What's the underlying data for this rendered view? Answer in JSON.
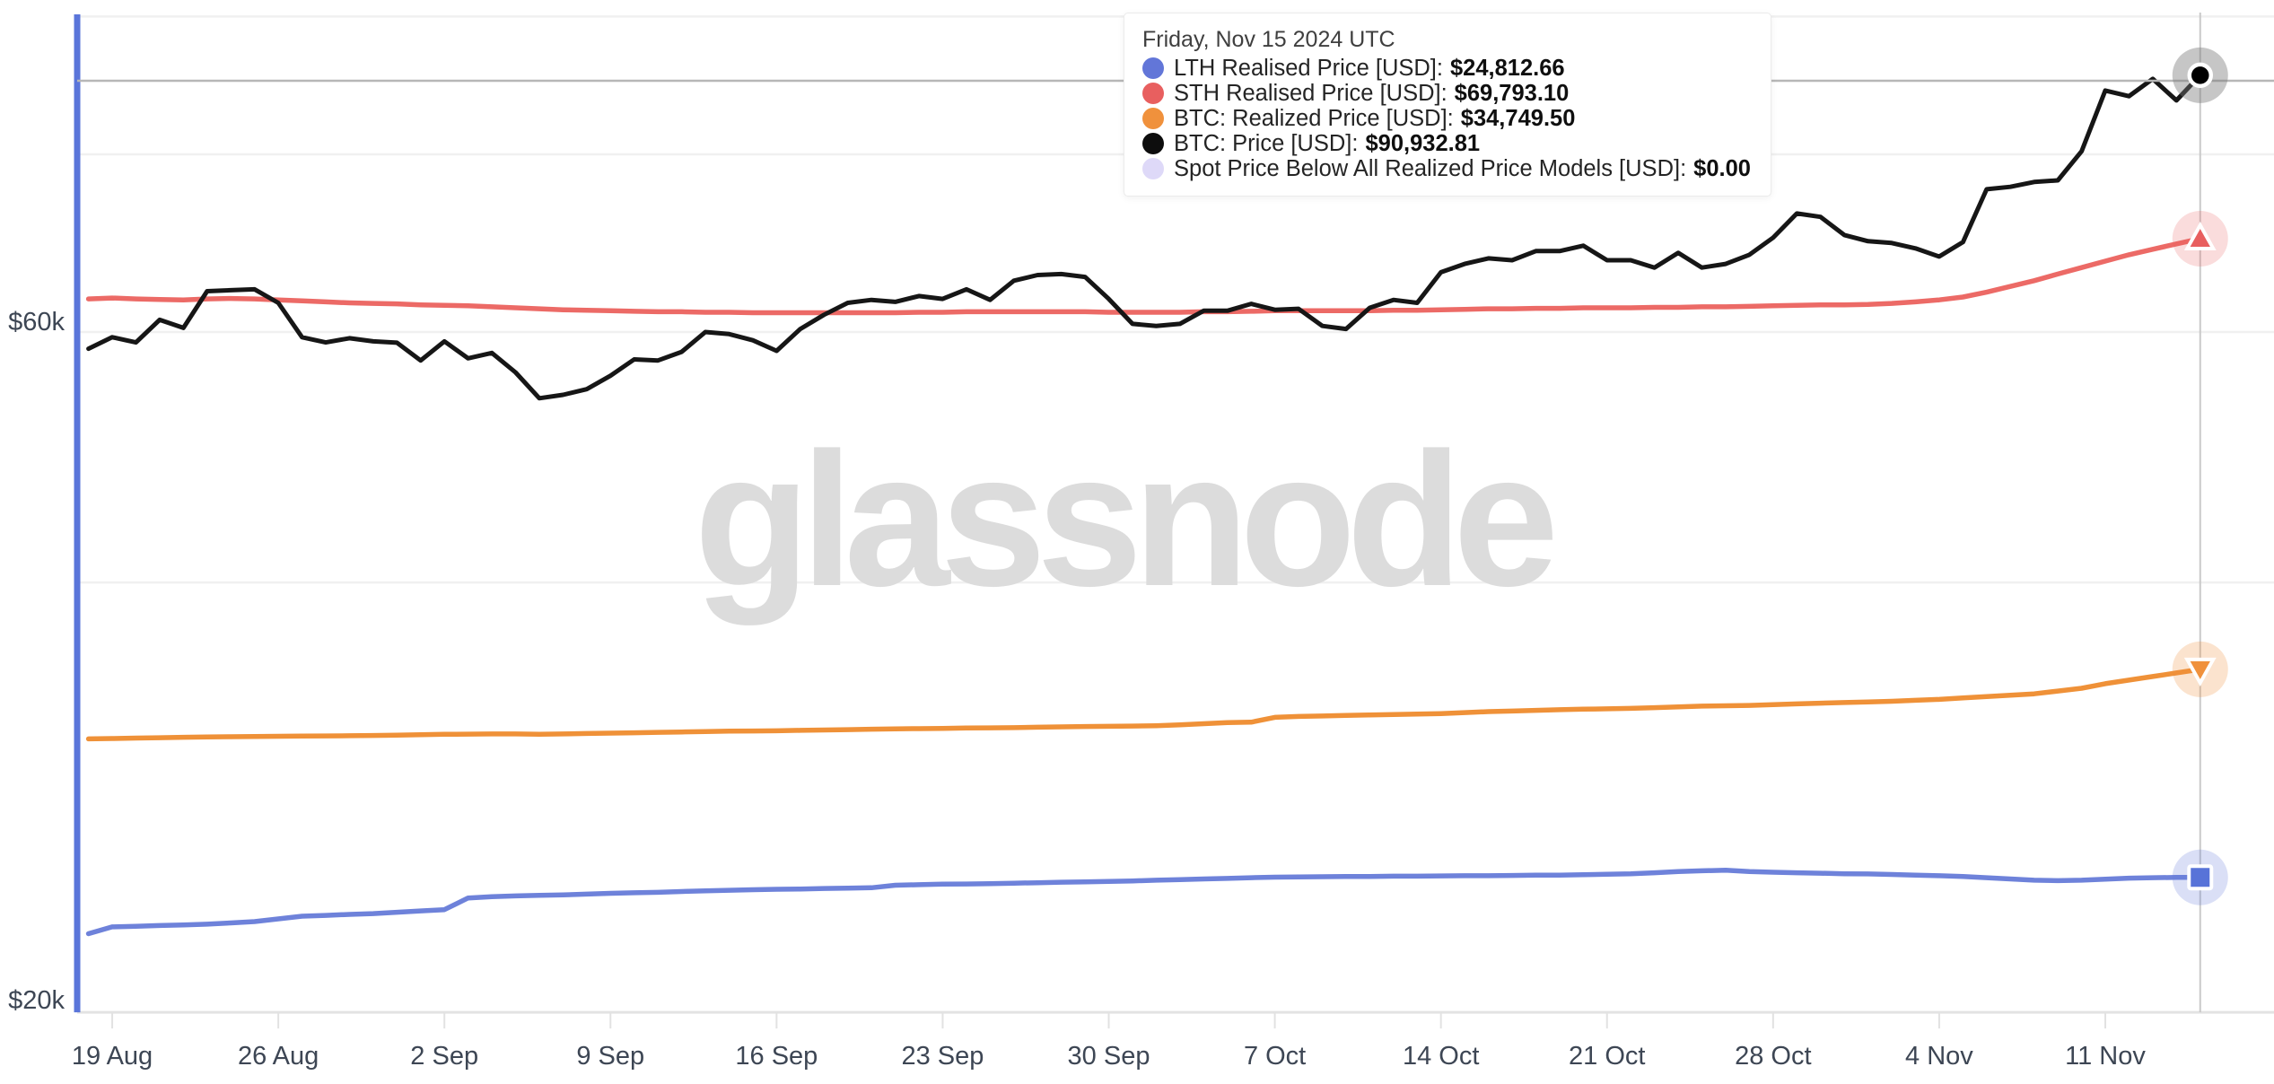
{
  "watermark": "glassnode",
  "tooltip": {
    "title": "Friday, Nov 15 2024 UTC",
    "rows": [
      {
        "label": "LTH Realised Price [USD]:",
        "value": "$24,812.66",
        "color": "#6276d8"
      },
      {
        "label": "STH Realised Price [USD]:",
        "value": "$69,793.10",
        "color": "#e85f5f"
      },
      {
        "label": "BTC: Realized Price [USD]:",
        "value": "$34,749.50",
        "color": "#f0913c"
      },
      {
        "label": "BTC: Price [USD]:",
        "value": "$90,932.81",
        "color": "#0d0d0d"
      },
      {
        "label": "Spot Price Below All Realized Price Models [USD]:",
        "value": "$0.00",
        "color": "#ded9f8"
      }
    ]
  },
  "axes": {
    "y_labels": [
      {
        "text": "$60k",
        "value_k": 60
      },
      {
        "text": "$20k",
        "value_k": 20
      }
    ],
    "x_tick_labels": [
      "19 Aug",
      "26 Aug",
      "2 Sep",
      "9 Sep",
      "16 Sep",
      "23 Sep",
      "30 Sep",
      "7 Oct",
      "14 Oct",
      "21 Oct",
      "28 Oct",
      "4 Nov",
      "11 Nov"
    ]
  },
  "chart_data": {
    "type": "line",
    "title": "",
    "x_start": "2024-08-18",
    "x_end": "2024-11-15",
    "x_freq": "daily",
    "units": "USD thousands",
    "y_scale": "log",
    "ylim_k": [
      20,
      100
    ],
    "y_gridlines_k": [
      100,
      80,
      60,
      40
    ],
    "x_axis_value_k": 20,
    "x_tick_day_offsets": [
      1,
      8,
      15,
      22,
      29,
      36,
      43,
      50,
      57,
      64,
      71,
      78,
      85
    ],
    "cursor": {
      "date": "2024-11-15",
      "day_offset": 89
    },
    "legend_position": "tooltip-top-center",
    "series": [
      {
        "name": "LTH Realised Price [USD]",
        "color": "#6e82da",
        "marker_color": "#5873d8",
        "halo": "rgba(100,120,216,0.24)",
        "marker": "square",
        "width": 5.5,
        "last_value_usd": 24812.66,
        "values_k": [
          22.65,
          22.9,
          22.92,
          22.95,
          22.97,
          23.0,
          23.05,
          23.1,
          23.2,
          23.3,
          23.33,
          23.37,
          23.4,
          23.45,
          23.5,
          23.55,
          24.0,
          24.05,
          24.08,
          24.1,
          24.12,
          24.15,
          24.18,
          24.2,
          24.22,
          24.25,
          24.28,
          24.3,
          24.32,
          24.34,
          24.35,
          24.37,
          24.38,
          24.4,
          24.5,
          24.52,
          24.54,
          24.55,
          24.56,
          24.58,
          24.6,
          24.62,
          24.63,
          24.65,
          24.67,
          24.7,
          24.72,
          24.75,
          24.77,
          24.8,
          24.82,
          24.83,
          24.84,
          24.85,
          24.85,
          24.86,
          24.86,
          24.87,
          24.88,
          24.88,
          24.89,
          24.9,
          24.9,
          24.92,
          24.94,
          24.96,
          25.0,
          25.05,
          25.08,
          25.1,
          25.05,
          25.02,
          25.0,
          24.98,
          24.96,
          24.95,
          24.93,
          24.9,
          24.88,
          24.85,
          24.8,
          24.75,
          24.7,
          24.68,
          24.7,
          24.74,
          24.78,
          24.8,
          24.81,
          24.81266
        ]
      },
      {
        "name": "BTC: Realized Price [USD]",
        "color": "#ef9138",
        "marker_color": "#f0913c",
        "halo": "rgba(240,145,60,0.25)",
        "marker": "triangle-down",
        "width": 5.5,
        "last_value_usd": 34749.5,
        "values_k": [
          31.05,
          31.07,
          31.09,
          31.11,
          31.13,
          31.15,
          31.16,
          31.17,
          31.18,
          31.19,
          31.2,
          31.21,
          31.22,
          31.24,
          31.26,
          31.28,
          31.29,
          31.3,
          31.3,
          31.28,
          31.3,
          31.32,
          31.34,
          31.36,
          31.38,
          31.4,
          31.42,
          31.44,
          31.45,
          31.46,
          31.48,
          31.5,
          31.52,
          31.54,
          31.56,
          31.57,
          31.58,
          31.6,
          31.61,
          31.62,
          31.64,
          31.66,
          31.68,
          31.69,
          31.7,
          31.72,
          31.76,
          31.82,
          31.88,
          31.9,
          32.15,
          32.2,
          32.22,
          32.25,
          32.28,
          32.3,
          32.32,
          32.35,
          32.4,
          32.45,
          32.48,
          32.52,
          32.55,
          32.58,
          32.6,
          32.62,
          32.66,
          32.7,
          32.74,
          32.76,
          32.78,
          32.82,
          32.86,
          32.9,
          32.93,
          32.96,
          33.0,
          33.05,
          33.1,
          33.18,
          33.25,
          33.32,
          33.4,
          33.55,
          33.7,
          33.95,
          34.15,
          34.35,
          34.55,
          34.7495
        ]
      },
      {
        "name": "STH Realised Price [USD]",
        "color": "#ec6a66",
        "marker_color": "#e85f5f",
        "halo": "rgba(232,95,95,0.22)",
        "marker": "triangle-up",
        "width": 5.5,
        "last_value_usd": 69793.1,
        "values_k": [
          63.3,
          63.4,
          63.3,
          63.25,
          63.2,
          63.3,
          63.35,
          63.3,
          63.2,
          63.1,
          63.0,
          62.9,
          62.85,
          62.8,
          62.7,
          62.65,
          62.6,
          62.5,
          62.4,
          62.3,
          62.2,
          62.15,
          62.1,
          62.05,
          62.0,
          62.0,
          61.95,
          61.95,
          61.9,
          61.9,
          61.9,
          61.9,
          61.9,
          61.9,
          61.9,
          61.95,
          61.95,
          62.0,
          62.0,
          62.0,
          62.0,
          62.0,
          62.0,
          61.95,
          61.95,
          61.95,
          61.95,
          62.0,
          62.0,
          62.05,
          62.1,
          62.1,
          62.1,
          62.1,
          62.1,
          62.15,
          62.15,
          62.2,
          62.25,
          62.3,
          62.3,
          62.35,
          62.35,
          62.4,
          62.4,
          62.4,
          62.45,
          62.45,
          62.5,
          62.5,
          62.55,
          62.6,
          62.65,
          62.7,
          62.7,
          62.75,
          62.85,
          63.0,
          63.2,
          63.5,
          64.0,
          64.6,
          65.2,
          65.9,
          66.6,
          67.3,
          68.0,
          68.6,
          69.2,
          69.7931
        ]
      },
      {
        "name": "BTC: Price [USD]",
        "color": "#161616",
        "marker_color": "#000000",
        "halo": "rgba(120,120,120,0.42)",
        "marker": "circle",
        "width": 5,
        "last_value_usd": 90932.81,
        "values_k": [
          58.4,
          59.5,
          59.0,
          61.2,
          60.4,
          64.1,
          64.2,
          64.3,
          62.9,
          59.5,
          59.0,
          59.4,
          59.1,
          58.97,
          57.3,
          59.1,
          57.5,
          58.0,
          56.2,
          53.9,
          54.2,
          54.7,
          55.9,
          57.4,
          57.3,
          58.1,
          60.0,
          59.8,
          59.2,
          58.2,
          60.3,
          61.7,
          62.9,
          63.2,
          63.0,
          63.6,
          63.3,
          64.3,
          63.2,
          65.2,
          65.8,
          65.9,
          65.6,
          63.3,
          60.8,
          60.6,
          60.8,
          62.1,
          62.1,
          62.8,
          62.2,
          62.3,
          60.6,
          60.3,
          62.4,
          63.2,
          62.9,
          66.1,
          67.0,
          67.6,
          67.4,
          68.4,
          68.4,
          69.0,
          67.4,
          67.4,
          66.6,
          68.2,
          66.6,
          67.0,
          68.0,
          69.9,
          72.7,
          72.3,
          70.2,
          69.5,
          69.3,
          68.7,
          67.8,
          69.4,
          75.6,
          75.9,
          76.5,
          76.7,
          80.4,
          88.7,
          87.9,
          90.4,
          87.3,
          90.93281
        ]
      },
      {
        "name": "Spot Price Below All Realized Price Models [USD]",
        "color": "#ded9f8",
        "marker_color": "#ded9f8",
        "halo": "rgba(222,217,248,0.3)",
        "marker": "none",
        "width": 5,
        "last_value_usd": 0,
        "values_k": []
      }
    ]
  }
}
